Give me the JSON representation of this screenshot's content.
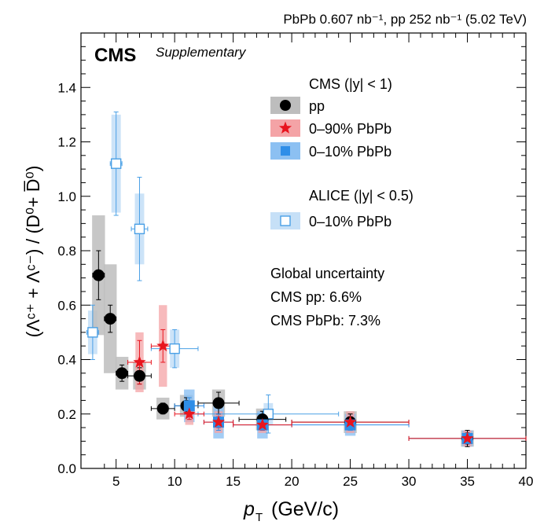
{
  "header": "PbPb 0.607 nb⁻¹, pp 252 nb⁻¹ (5.02 TeV)",
  "cms_label": "CMS",
  "supplementary_label": "Supplementary",
  "ylabel": "(Λᶜ⁺ + Λᶜ⁻) / (D⁰+ D̅⁰)",
  "xlabel_var": "p",
  "xlabel_sub": "T",
  "xlabel_unit": "(GeV/c)",
  "legend": {
    "cms_header": "CMS (|y| < 1)",
    "alice_header": "ALICE (|y| < 0.5)",
    "entries": {
      "pp": "pp",
      "pbpb090": "0–90% PbPb",
      "pbpb010": "0–10% PbPb",
      "alice": "0–10% PbPb"
    }
  },
  "notes": [
    "Global uncertainty",
    "CMS pp: 6.6%",
    "CMS PbPb: 7.3%"
  ],
  "colors": {
    "pp": "#000000",
    "pp_sys": "#bdbdbd",
    "pbpb090": "#e8141e",
    "pbpb090_sys": "#f4a3a6",
    "pbpb010": "#2f8ee8",
    "pbpb010_sys": "#8cc0f2",
    "alice": "#4aa0e6",
    "alice_sys": "#c6e0f7"
  },
  "chart_data": {
    "type": "scatter",
    "xlim": [
      2,
      40
    ],
    "ylim": [
      0,
      1.6
    ],
    "xticks": [
      5,
      10,
      15,
      20,
      25,
      30,
      35,
      40
    ],
    "yticks": [
      0.0,
      0.2,
      0.4,
      0.6,
      0.8,
      1.0,
      1.2,
      1.4
    ],
    "series": [
      {
        "key": "alice",
        "name": "ALICE 0–10% PbPb",
        "points": [
          {
            "x": 3.0,
            "y": 0.5,
            "xerr": 0.5,
            "stat": 0.1,
            "sys": 0.08
          },
          {
            "x": 5.0,
            "y": 1.12,
            "xerr": 0.5,
            "stat": 0.19,
            "sys": 0.18
          },
          {
            "x": 7.0,
            "y": 0.88,
            "xerr": 0.7,
            "stat": 0.19,
            "sys": 0.13
          },
          {
            "x": 10.0,
            "y": 0.44,
            "xerr": 2.0,
            "stat": 0.07,
            "sys": 0.07
          },
          {
            "x": 18.0,
            "y": 0.2,
            "xerr": 6.0,
            "stat": 0.07,
            "sys": 0.04
          }
        ]
      },
      {
        "key": "pp",
        "name": "pp",
        "points": [
          {
            "x": 3.5,
            "y": 0.71,
            "xerr": 0.5,
            "stat": 0.09,
            "sys": 0.22
          },
          {
            "x": 4.5,
            "y": 0.55,
            "xerr": 0.5,
            "stat": 0.05,
            "sys": 0.2
          },
          {
            "x": 5.5,
            "y": 0.35,
            "xerr": 0.5,
            "stat": 0.03,
            "sys": 0.06
          },
          {
            "x": 7.0,
            "y": 0.34,
            "xerr": 1.0,
            "stat": 0.03,
            "sys": 0.05
          },
          {
            "x": 9.0,
            "y": 0.22,
            "xerr": 1.0,
            "stat": 0.02,
            "sys": 0.04
          },
          {
            "x": 11.0,
            "y": 0.23,
            "xerr": 1.0,
            "stat": 0.03,
            "sys": 0.04
          },
          {
            "x": 13.75,
            "y": 0.24,
            "xerr": 1.75,
            "stat": 0.04,
            "sys": 0.05
          },
          {
            "x": 17.5,
            "y": 0.18,
            "xerr": 2.0,
            "stat": 0.03,
            "sys": 0.04
          },
          {
            "x": 25.0,
            "y": 0.17,
            "xerr": 5.0,
            "stat": 0.03,
            "sys": 0.04
          },
          {
            "x": 35.0,
            "y": 0.11,
            "xerr": 5.0,
            "stat": 0.03,
            "sys": 0.03
          }
        ]
      },
      {
        "key": "pbpb010",
        "name": "0–10% PbPb",
        "points": [
          {
            "x": 11.25,
            "y": 0.23,
            "xerr": 1.25,
            "stat": 0.03,
            "sys": 0.06
          },
          {
            "x": 13.75,
            "y": 0.17,
            "xerr": 1.25,
            "stat": 0.03,
            "sys": 0.06
          },
          {
            "x": 17.5,
            "y": 0.16,
            "xerr": 2.5,
            "stat": 0.02,
            "sys": 0.05
          },
          {
            "x": 25.0,
            "y": 0.16,
            "xerr": 5.0,
            "stat": 0.02,
            "sys": 0.04
          },
          {
            "x": 35.0,
            "y": 0.11,
            "xerr": 5.0,
            "stat": 0.02,
            "sys": 0.03
          }
        ]
      },
      {
        "key": "pbpb090",
        "name": "0–90% PbPb",
        "points": [
          {
            "x": 7.0,
            "y": 0.39,
            "xerr": 1.0,
            "stat": 0.08,
            "sys": 0.11
          },
          {
            "x": 9.0,
            "y": 0.45,
            "xerr": 1.0,
            "stat": 0.06,
            "sys": 0.15
          },
          {
            "x": 11.25,
            "y": 0.2,
            "xerr": 1.25,
            "stat": 0.02,
            "sys": 0.04
          },
          {
            "x": 13.75,
            "y": 0.17,
            "xerr": 1.25,
            "stat": 0.02,
            "sys": 0.04
          },
          {
            "x": 17.5,
            "y": 0.16,
            "xerr": 2.5,
            "stat": 0.02,
            "sys": 0.03
          },
          {
            "x": 25.0,
            "y": 0.17,
            "xerr": 5.0,
            "stat": 0.02,
            "sys": 0.04
          },
          {
            "x": 35.0,
            "y": 0.11,
            "xerr": 5.0,
            "stat": 0.02,
            "sys": 0.03
          }
        ]
      }
    ]
  }
}
